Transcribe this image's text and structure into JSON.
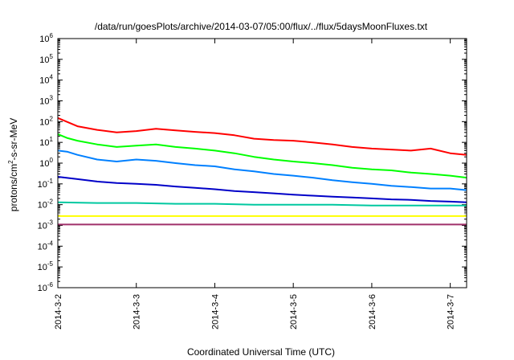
{
  "chart_data": {
    "type": "line",
    "title": "/data/run/goesPlots/archive/2014-03-07/05:00/flux/../flux/5daysMoonFluxes.txt",
    "xlabel": "Coordinated Universal Time (UTC)",
    "ylabel": {
      "prefix": "protons/cm",
      "sup": "2",
      "suffix": "-s-sr-MeV"
    },
    "y_scale": "log",
    "ylim": [
      1e-06,
      1000000.0
    ],
    "y_ticks": [
      {
        "value": 1e-06,
        "base": "10",
        "exp": "-6"
      },
      {
        "value": 1e-05,
        "base": "10",
        "exp": "-5"
      },
      {
        "value": 0.0001,
        "base": "10",
        "exp": "-4"
      },
      {
        "value": 0.001,
        "base": "10",
        "exp": "-3"
      },
      {
        "value": 0.01,
        "base": "10",
        "exp": "-2"
      },
      {
        "value": 0.1,
        "base": "10",
        "exp": "-1"
      },
      {
        "value": 1.0,
        "base": "10",
        "exp": "0"
      },
      {
        "value": 10.0,
        "base": "10",
        "exp": "1"
      },
      {
        "value": 100.0,
        "base": "10",
        "exp": "2"
      },
      {
        "value": 1000.0,
        "base": "10",
        "exp": "3"
      },
      {
        "value": 10000.0,
        "base": "10",
        "exp": "4"
      },
      {
        "value": 100000.0,
        "base": "10",
        "exp": "5"
      },
      {
        "value": 1000000.0,
        "base": "10",
        "exp": "6"
      }
    ],
    "xlim": [
      "2014-03-02T00:00",
      "2014-03-07T05:00"
    ],
    "x_ticks": [
      "2014-3-2",
      "2014-3-3",
      "2014-3-4",
      "2014-3-5",
      "2014-3-6",
      "2014-3-7"
    ],
    "grid": false,
    "legend": "none",
    "series": [
      {
        "color": "#ff0000",
        "points": [
          [
            "2014-03-02T00:00",
            150
          ],
          [
            "2014-03-02T03:00",
            95
          ],
          [
            "2014-03-02T06:00",
            60
          ],
          [
            "2014-03-02T12:00",
            40
          ],
          [
            "2014-03-02T18:00",
            30
          ],
          [
            "2014-03-03T00:00",
            35
          ],
          [
            "2014-03-03T06:00",
            45
          ],
          [
            "2014-03-03T12:00",
            38
          ],
          [
            "2014-03-03T18:00",
            32
          ],
          [
            "2014-03-04T00:00",
            28
          ],
          [
            "2014-03-04T06:00",
            22
          ],
          [
            "2014-03-04T12:00",
            15
          ],
          [
            "2014-03-04T18:00",
            13
          ],
          [
            "2014-03-05T00:00",
            12
          ],
          [
            "2014-03-05T06:00",
            10
          ],
          [
            "2014-03-05T12:00",
            8
          ],
          [
            "2014-03-05T18:00",
            6
          ],
          [
            "2014-03-06T00:00",
            5
          ],
          [
            "2014-03-06T06:00",
            4.5
          ],
          [
            "2014-03-06T12:00",
            4
          ],
          [
            "2014-03-06T18:00",
            5
          ],
          [
            "2014-03-07T00:00",
            3
          ],
          [
            "2014-03-07T05:00",
            2.5
          ]
        ]
      },
      {
        "color": "#00ff00",
        "points": [
          [
            "2014-03-02T00:00",
            25
          ],
          [
            "2014-03-02T03:00",
            16
          ],
          [
            "2014-03-02T06:00",
            12
          ],
          [
            "2014-03-02T12:00",
            8
          ],
          [
            "2014-03-02T18:00",
            6
          ],
          [
            "2014-03-03T00:00",
            7
          ],
          [
            "2014-03-03T06:00",
            8
          ],
          [
            "2014-03-03T12:00",
            6
          ],
          [
            "2014-03-03T18:00",
            5
          ],
          [
            "2014-03-04T00:00",
            4
          ],
          [
            "2014-03-04T06:00",
            3
          ],
          [
            "2014-03-04T12:00",
            2
          ],
          [
            "2014-03-04T18:00",
            1.5
          ],
          [
            "2014-03-05T00:00",
            1.2
          ],
          [
            "2014-03-05T06:00",
            1
          ],
          [
            "2014-03-05T12:00",
            0.8
          ],
          [
            "2014-03-05T18:00",
            0.6
          ],
          [
            "2014-03-06T00:00",
            0.5
          ],
          [
            "2014-03-06T06:00",
            0.45
          ],
          [
            "2014-03-06T12:00",
            0.35
          ],
          [
            "2014-03-06T18:00",
            0.3
          ],
          [
            "2014-03-07T00:00",
            0.25
          ],
          [
            "2014-03-07T05:00",
            0.2
          ]
        ]
      },
      {
        "color": "#0080ff",
        "points": [
          [
            "2014-03-02T00:00",
            4
          ],
          [
            "2014-03-02T03:00",
            3.5
          ],
          [
            "2014-03-02T06:00",
            2.5
          ],
          [
            "2014-03-02T12:00",
            1.5
          ],
          [
            "2014-03-02T18:00",
            1.2
          ],
          [
            "2014-03-03T00:00",
            1.5
          ],
          [
            "2014-03-03T06:00",
            1.3
          ],
          [
            "2014-03-03T12:00",
            1
          ],
          [
            "2014-03-03T18:00",
            0.8
          ],
          [
            "2014-03-04T00:00",
            0.7
          ],
          [
            "2014-03-04T06:00",
            0.5
          ],
          [
            "2014-03-04T12:00",
            0.4
          ],
          [
            "2014-03-04T18:00",
            0.3
          ],
          [
            "2014-03-05T00:00",
            0.25
          ],
          [
            "2014-03-05T06:00",
            0.2
          ],
          [
            "2014-03-05T12:00",
            0.15
          ],
          [
            "2014-03-05T18:00",
            0.12
          ],
          [
            "2014-03-06T00:00",
            0.1
          ],
          [
            "2014-03-06T06:00",
            0.08
          ],
          [
            "2014-03-06T12:00",
            0.07
          ],
          [
            "2014-03-06T18:00",
            0.06
          ],
          [
            "2014-03-07T00:00",
            0.06
          ],
          [
            "2014-03-07T05:00",
            0.05
          ]
        ]
      },
      {
        "color": "#0000c8",
        "points": [
          [
            "2014-03-02T00:00",
            0.22
          ],
          [
            "2014-03-02T06:00",
            0.17
          ],
          [
            "2014-03-02T12:00",
            0.13
          ],
          [
            "2014-03-02T18:00",
            0.11
          ],
          [
            "2014-03-03T00:00",
            0.1
          ],
          [
            "2014-03-03T06:00",
            0.09
          ],
          [
            "2014-03-03T12:00",
            0.075
          ],
          [
            "2014-03-03T18:00",
            0.065
          ],
          [
            "2014-03-04T00:00",
            0.055
          ],
          [
            "2014-03-04T06:00",
            0.045
          ],
          [
            "2014-03-04T12:00",
            0.04
          ],
          [
            "2014-03-04T18:00",
            0.035
          ],
          [
            "2014-03-05T00:00",
            0.03
          ],
          [
            "2014-03-05T06:00",
            0.027
          ],
          [
            "2014-03-05T12:00",
            0.024
          ],
          [
            "2014-03-05T18:00",
            0.022
          ],
          [
            "2014-03-06T00:00",
            0.02
          ],
          [
            "2014-03-06T06:00",
            0.018
          ],
          [
            "2014-03-06T12:00",
            0.017
          ],
          [
            "2014-03-06T18:00",
            0.015
          ],
          [
            "2014-03-07T00:00",
            0.014
          ],
          [
            "2014-03-07T05:00",
            0.013
          ]
        ]
      },
      {
        "color": "#00c8a0",
        "points": [
          [
            "2014-03-02T00:00",
            0.013
          ],
          [
            "2014-03-02T12:00",
            0.012
          ],
          [
            "2014-03-03T00:00",
            0.012
          ],
          [
            "2014-03-03T12:00",
            0.011
          ],
          [
            "2014-03-04T00:00",
            0.011
          ],
          [
            "2014-03-04T12:00",
            0.01
          ],
          [
            "2014-03-05T00:00",
            0.01
          ],
          [
            "2014-03-05T12:00",
            0.01
          ],
          [
            "2014-03-06T00:00",
            0.009
          ],
          [
            "2014-03-06T12:00",
            0.009
          ],
          [
            "2014-03-07T00:00",
            0.009
          ],
          [
            "2014-03-07T05:00",
            0.009
          ]
        ]
      },
      {
        "color": "#ffff00",
        "points": [
          [
            "2014-03-02T00:00",
            0.0028
          ],
          [
            "2014-03-03T00:00",
            0.0028
          ],
          [
            "2014-03-04T00:00",
            0.0028
          ],
          [
            "2014-03-05T00:00",
            0.0028
          ],
          [
            "2014-03-06T00:00",
            0.0028
          ],
          [
            "2014-03-07T00:00",
            0.0028
          ],
          [
            "2014-03-07T05:00",
            0.0028
          ]
        ]
      },
      {
        "color": "#a0306a",
        "points": [
          [
            "2014-03-02T00:00",
            0.0011
          ],
          [
            "2014-03-03T00:00",
            0.0011
          ],
          [
            "2014-03-04T00:00",
            0.0011
          ],
          [
            "2014-03-05T00:00",
            0.0011
          ],
          [
            "2014-03-06T00:00",
            0.0011
          ],
          [
            "2014-03-07T00:00",
            0.0011
          ],
          [
            "2014-03-07T05:00",
            0.0011
          ]
        ]
      }
    ]
  }
}
